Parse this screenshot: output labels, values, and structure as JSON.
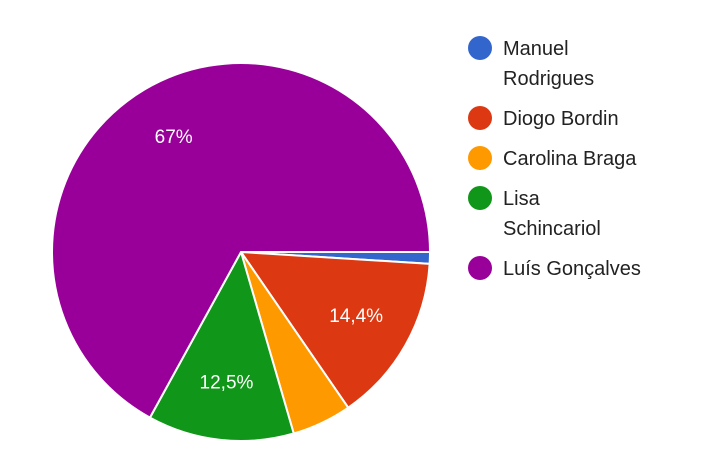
{
  "chart_data": {
    "type": "pie",
    "categories": [
      "Manuel Rodrigues",
      "Diogo Bordin",
      "Carolina Braga",
      "Lisa Schincariol",
      "Luís Gonçalves"
    ],
    "values": [
      1,
      14.4,
      5.1,
      12.5,
      67
    ],
    "value_labels": [
      null,
      "14,4%",
      null,
      "12,5%",
      "67%"
    ],
    "colors": [
      "#3366cc",
      "#dc3912",
      "#ff9900",
      "#109618",
      "#990099"
    ]
  }
}
